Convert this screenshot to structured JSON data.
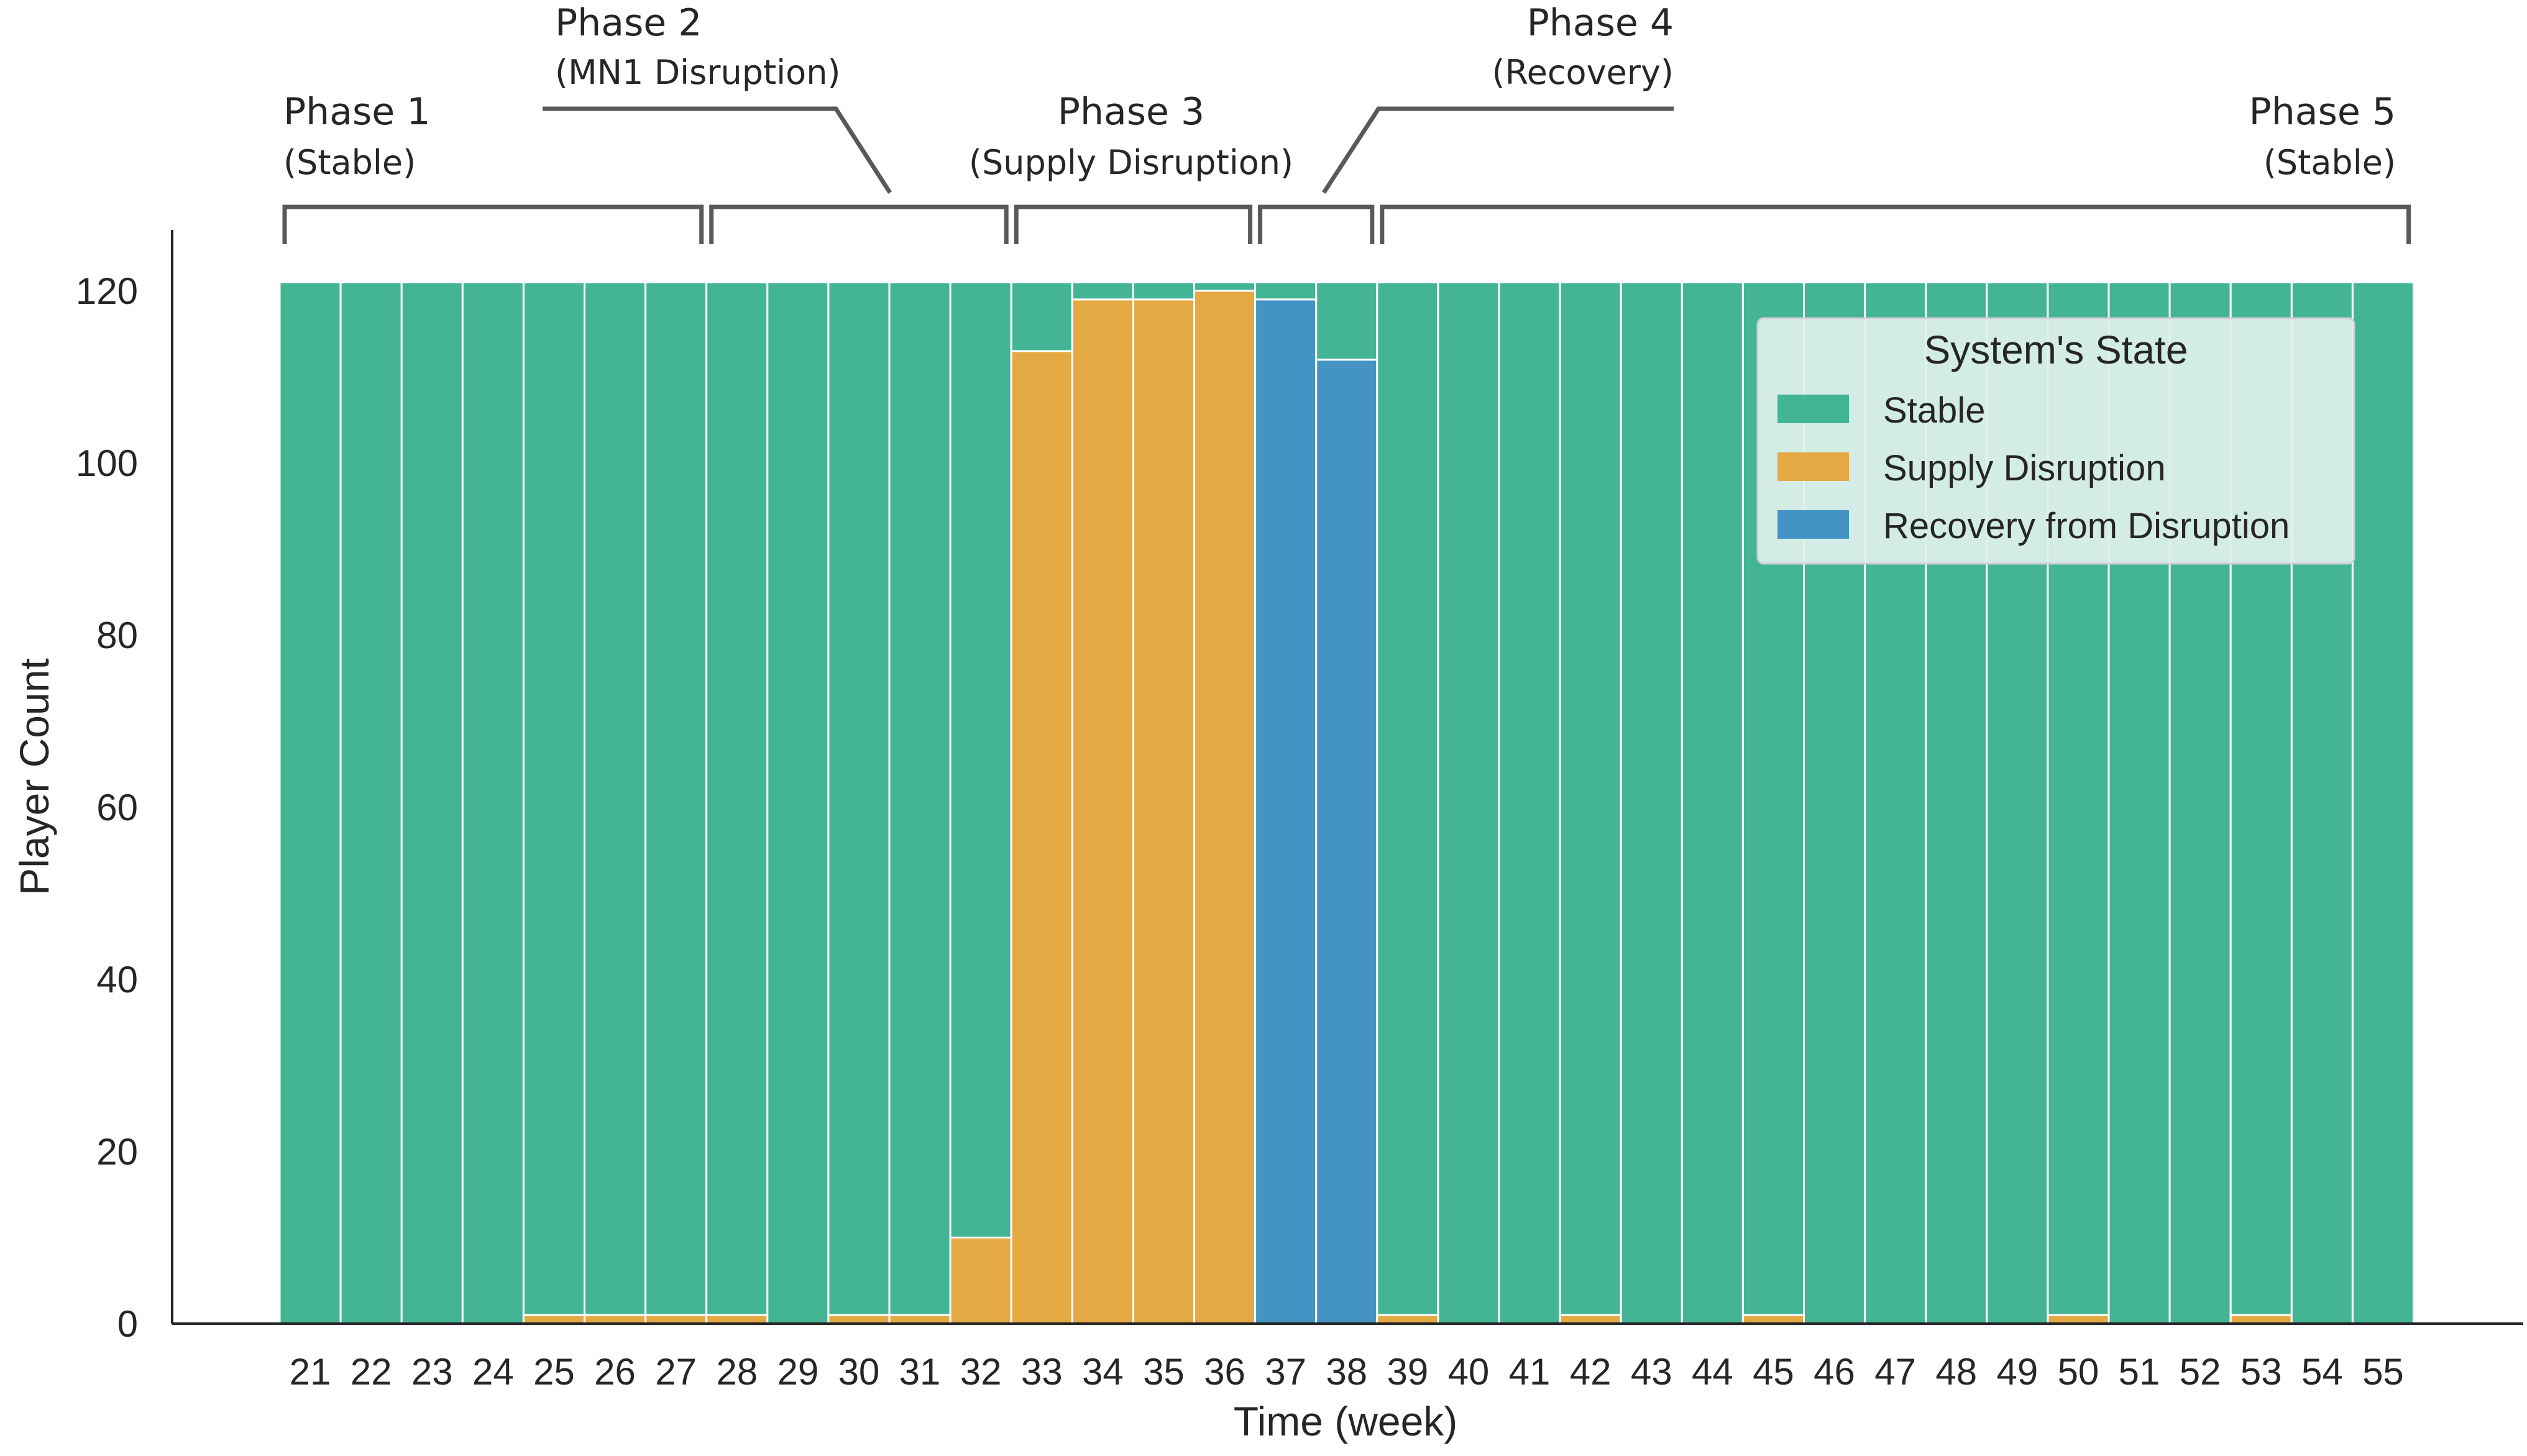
{
  "chart_data": {
    "type": "bar",
    "stacked": true,
    "xlabel": "Time (week)",
    "ylabel": "Player Count",
    "ylim": [
      0,
      125
    ],
    "yticks": [
      0,
      20,
      40,
      60,
      80,
      100,
      120
    ],
    "grid": false,
    "categories": [
      "21",
      "22",
      "23",
      "24",
      "25",
      "26",
      "27",
      "28",
      "29",
      "30",
      "31",
      "32",
      "33",
      "34",
      "35",
      "36",
      "37",
      "38",
      "39",
      "40",
      "41",
      "42",
      "43",
      "44",
      "45",
      "46",
      "47",
      "48",
      "49",
      "50",
      "51",
      "52",
      "53",
      "54",
      "55"
    ],
    "series": [
      {
        "name": "Recovery from Disruption",
        "color": "#4394c5",
        "values": [
          0,
          0,
          0,
          0,
          0,
          0,
          0,
          0,
          0,
          0,
          0,
          0,
          0,
          0,
          0,
          0,
          119,
          112,
          0,
          0,
          0,
          0,
          0,
          0,
          0,
          0,
          0,
          0,
          0,
          0,
          0,
          0,
          0,
          0,
          0
        ]
      },
      {
        "name": "Supply Disruption",
        "color": "#e5a944",
        "values": [
          0,
          0,
          0,
          0,
          1,
          1,
          1,
          1,
          0,
          1,
          1,
          10,
          113,
          119,
          119,
          120,
          0,
          0,
          1,
          0,
          0,
          1,
          0,
          0,
          1,
          0,
          0,
          0,
          0,
          1,
          0,
          0,
          1,
          0,
          0
        ]
      },
      {
        "name": "Stable",
        "color": "#43b595",
        "values": [
          121,
          121,
          121,
          121,
          120,
          120,
          120,
          120,
          121,
          120,
          120,
          111,
          8,
          2,
          2,
          1,
          2,
          9,
          120,
          121,
          121,
          120,
          121,
          121,
          120,
          121,
          121,
          121,
          121,
          120,
          121,
          121,
          120,
          121,
          121
        ]
      }
    ],
    "legend": {
      "title": "System's State",
      "position": "top-right",
      "items": [
        {
          "label": "Stable",
          "color": "#43b595"
        },
        {
          "label": "Supply Disruption",
          "color": "#e5a944"
        },
        {
          "label": "Recovery from Disruption",
          "color": "#4394c5"
        }
      ]
    },
    "annotations": [
      {
        "title": "Phase 1",
        "subtitle": "(Stable)",
        "from": "21",
        "to": "27"
      },
      {
        "title": "Phase 2",
        "subtitle": "(MN1 Disruption)",
        "from": "28",
        "to": "32"
      },
      {
        "title": "Phase 3",
        "subtitle": "(Supply Disruption)",
        "from": "33",
        "to": "36"
      },
      {
        "title": "Phase 4",
        "subtitle": "(Recovery)",
        "from": "37",
        "to": "38"
      },
      {
        "title": "Phase 5",
        "subtitle": "(Stable)",
        "from": "39",
        "to": "55"
      }
    ]
  }
}
